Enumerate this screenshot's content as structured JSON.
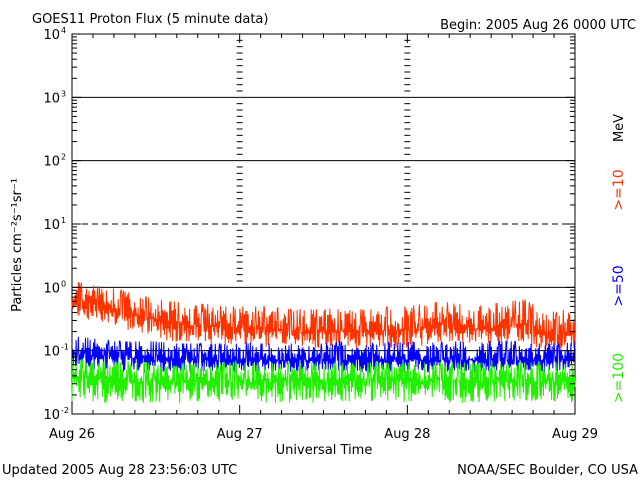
{
  "chart_data": {
    "type": "line",
    "title": "GOES11 Proton Flux (5 minute data)",
    "begin": "Begin: 2005 Aug 26 0000 UTC",
    "xlabel": "Universal Time",
    "ylabel": "Particles cm⁻²s⁻¹sr⁻¹",
    "yscale": "log",
    "ylim": [
      0.01,
      10000
    ],
    "xlim": [
      0,
      3
    ],
    "x_ticks": [
      {
        "value": 0,
        "label": "Aug 26"
      },
      {
        "value": 1,
        "label": "Aug 27"
      },
      {
        "value": 2,
        "label": "Aug 28"
      },
      {
        "value": 3,
        "label": "Aug 29"
      }
    ],
    "y_ticks": [
      {
        "value": 0.01,
        "mantissa": "10",
        "exponent": "-2"
      },
      {
        "value": 0.1,
        "mantissa": "10",
        "exponent": "-1"
      },
      {
        "value": 1,
        "mantissa": "10",
        "exponent": "0"
      },
      {
        "value": 10,
        "mantissa": "10",
        "exponent": "1"
      },
      {
        "value": 100,
        "mantissa": "10",
        "exponent": "2"
      },
      {
        "value": 1000,
        "mantissa": "10",
        "exponent": "3"
      },
      {
        "value": 10000,
        "mantissa": "10",
        "exponent": "4"
      }
    ],
    "threshold_lines": [
      {
        "value": 0.1,
        "style": "solid"
      },
      {
        "value": 1,
        "style": "solid"
      },
      {
        "value": 10,
        "style": "dashed"
      },
      {
        "value": 100,
        "style": "solid"
      },
      {
        "value": 1000,
        "style": "solid"
      }
    ],
    "series": [
      {
        "name": ">=10",
        "color": "#ff3300",
        "x": [
          0,
          0.1,
          0.2,
          0.3,
          0.4,
          0.5,
          0.6,
          0.7,
          0.8,
          0.9,
          1.0,
          1.1,
          1.2,
          1.3,
          1.4,
          1.5,
          1.6,
          1.7,
          1.8,
          1.9,
          2.0,
          2.1,
          2.2,
          2.3,
          2.4,
          2.5,
          2.6,
          2.7,
          2.8,
          2.9,
          3.0
        ],
        "values": [
          0.62,
          0.55,
          0.5,
          0.42,
          0.35,
          0.3,
          0.27,
          0.25,
          0.24,
          0.22,
          0.22,
          0.21,
          0.2,
          0.2,
          0.19,
          0.19,
          0.2,
          0.19,
          0.19,
          0.2,
          0.2,
          0.22,
          0.25,
          0.24,
          0.21,
          0.22,
          0.23,
          0.25,
          0.17,
          0.16,
          0.2
        ],
        "low": [
          0.35,
          0.3,
          0.28,
          0.22,
          0.18,
          0.16,
          0.14,
          0.13,
          0.13,
          0.12,
          0.12,
          0.12,
          0.11,
          0.11,
          0.11,
          0.11,
          0.11,
          0.11,
          0.11,
          0.11,
          0.11,
          0.12,
          0.13,
          0.13,
          0.12,
          0.12,
          0.12,
          0.13,
          0.1,
          0.1,
          0.11
        ],
        "high": [
          1.3,
          1.1,
          1.0,
          0.9,
          0.75,
          0.65,
          0.6,
          0.55,
          0.55,
          0.5,
          0.5,
          0.5,
          0.48,
          0.45,
          0.45,
          0.45,
          0.48,
          0.45,
          0.45,
          0.5,
          0.5,
          0.55,
          0.6,
          0.55,
          0.5,
          0.55,
          0.6,
          0.65,
          0.45,
          0.4,
          0.55
        ]
      },
      {
        "name": ">=50",
        "color": "#0000ff",
        "x": [
          0,
          0.1,
          0.2,
          0.3,
          0.4,
          0.5,
          0.6,
          0.7,
          0.8,
          0.9,
          1.0,
          1.1,
          1.2,
          1.3,
          1.4,
          1.5,
          1.6,
          1.7,
          1.8,
          1.9,
          2.0,
          2.1,
          2.2,
          2.3,
          2.4,
          2.5,
          2.6,
          2.7,
          2.8,
          2.9,
          3.0
        ],
        "values": [
          0.09,
          0.085,
          0.08,
          0.075,
          0.075,
          0.07,
          0.07,
          0.07,
          0.07,
          0.07,
          0.07,
          0.07,
          0.07,
          0.07,
          0.07,
          0.07,
          0.07,
          0.07,
          0.07,
          0.07,
          0.07,
          0.07,
          0.07,
          0.07,
          0.07,
          0.07,
          0.07,
          0.07,
          0.07,
          0.07,
          0.07
        ],
        "low": [
          0.055,
          0.05,
          0.05,
          0.045,
          0.045,
          0.045,
          0.045,
          0.045,
          0.045,
          0.045,
          0.045,
          0.045,
          0.045,
          0.045,
          0.045,
          0.045,
          0.045,
          0.045,
          0.045,
          0.045,
          0.045,
          0.045,
          0.045,
          0.045,
          0.045,
          0.045,
          0.045,
          0.045,
          0.045,
          0.045,
          0.045
        ],
        "high": [
          0.18,
          0.16,
          0.15,
          0.14,
          0.14,
          0.14,
          0.13,
          0.13,
          0.13,
          0.13,
          0.14,
          0.13,
          0.13,
          0.13,
          0.13,
          0.13,
          0.14,
          0.13,
          0.13,
          0.14,
          0.14,
          0.14,
          0.14,
          0.14,
          0.13,
          0.14,
          0.14,
          0.14,
          0.13,
          0.13,
          0.14
        ]
      },
      {
        "name": ">=100",
        "color": "#22ee00",
        "x": [
          0,
          0.1,
          0.2,
          0.3,
          0.4,
          0.5,
          0.6,
          0.7,
          0.8,
          0.9,
          1.0,
          1.1,
          1.2,
          1.3,
          1.4,
          1.5,
          1.6,
          1.7,
          1.8,
          1.9,
          2.0,
          2.1,
          2.2,
          2.3,
          2.4,
          2.5,
          2.6,
          2.7,
          2.8,
          2.9,
          3.0
        ],
        "values": [
          0.035,
          0.035,
          0.033,
          0.033,
          0.032,
          0.032,
          0.032,
          0.032,
          0.032,
          0.032,
          0.032,
          0.032,
          0.032,
          0.032,
          0.032,
          0.032,
          0.032,
          0.032,
          0.032,
          0.032,
          0.032,
          0.032,
          0.032,
          0.032,
          0.032,
          0.032,
          0.032,
          0.032,
          0.032,
          0.032,
          0.032
        ],
        "low": [
          0.015,
          0.015,
          0.015,
          0.015,
          0.015,
          0.015,
          0.015,
          0.015,
          0.015,
          0.015,
          0.015,
          0.015,
          0.015,
          0.015,
          0.015,
          0.015,
          0.015,
          0.015,
          0.015,
          0.015,
          0.015,
          0.015,
          0.015,
          0.015,
          0.015,
          0.015,
          0.015,
          0.015,
          0.015,
          0.015,
          0.015
        ],
        "high": [
          0.075,
          0.07,
          0.07,
          0.07,
          0.065,
          0.065,
          0.065,
          0.065,
          0.065,
          0.065,
          0.065,
          0.065,
          0.065,
          0.065,
          0.065,
          0.065,
          0.065,
          0.065,
          0.065,
          0.065,
          0.065,
          0.065,
          0.065,
          0.065,
          0.065,
          0.065,
          0.065,
          0.065,
          0.065,
          0.065,
          0.065
        ]
      }
    ],
    "legend": {
      "unit": "MeV",
      "entries": [
        {
          "label": ">=10",
          "color": "#ff3300"
        },
        {
          "label": ">=50",
          "color": "#0000ff"
        },
        {
          "label": ">=100",
          "color": "#22ee00"
        }
      ]
    }
  },
  "footer": {
    "updated": "Updated 2005 Aug 28 23:56:03 UTC",
    "source": "NOAA/SEC Boulder, CO USA"
  }
}
